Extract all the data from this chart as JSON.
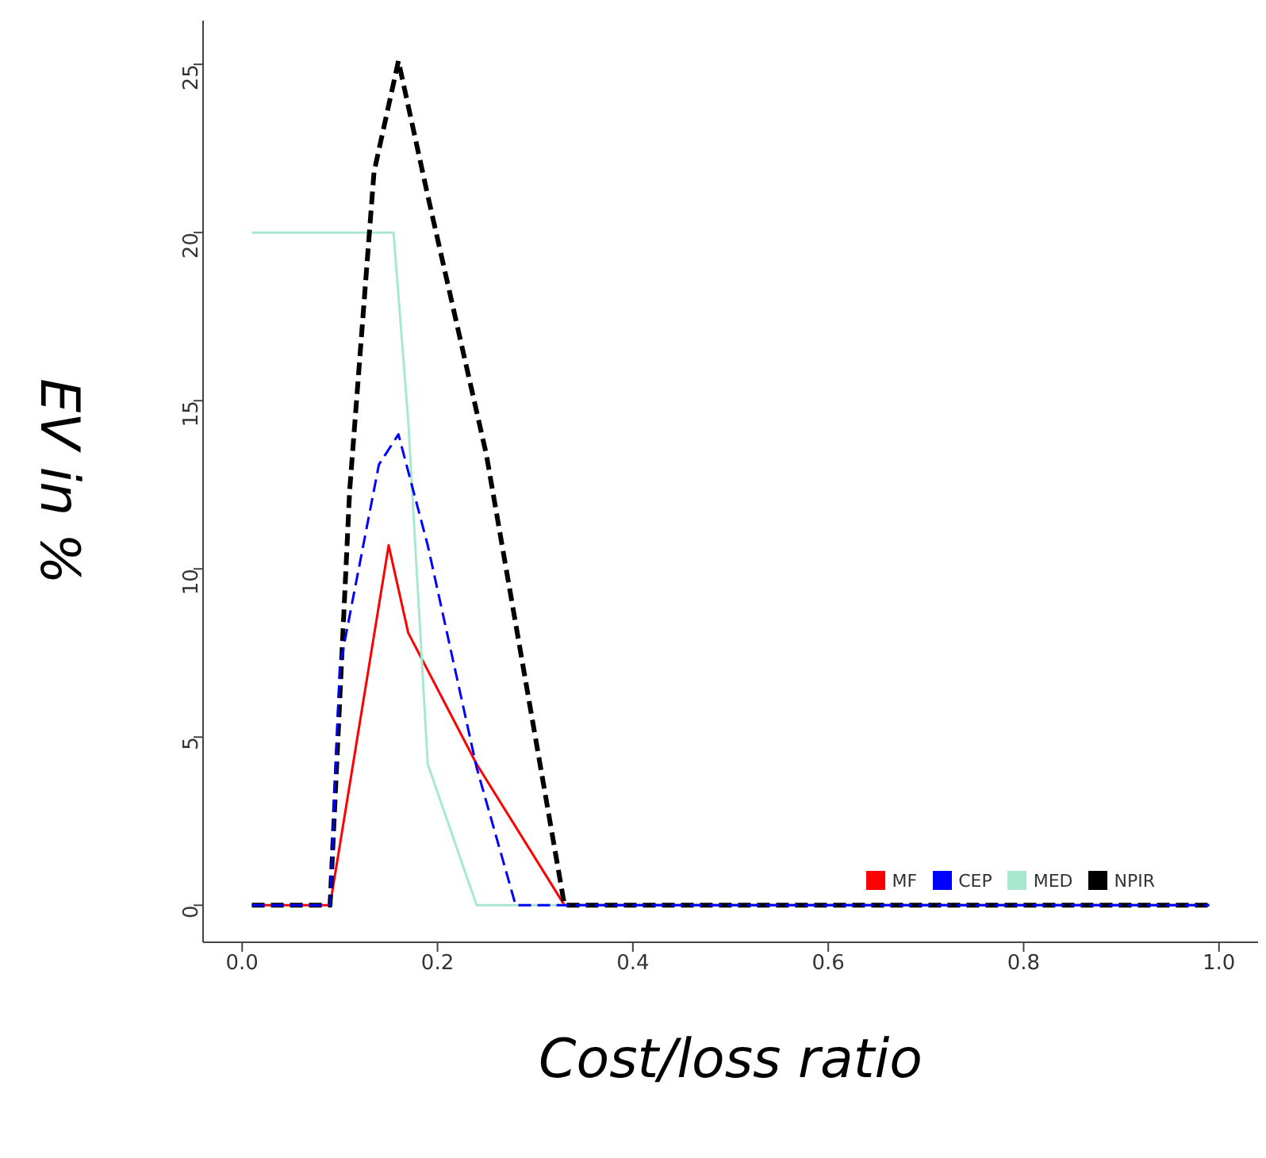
{
  "chart_data": {
    "type": "line",
    "xlabel": "Cost/loss ratio",
    "ylabel": "EV in %",
    "xlim": [
      -0.04,
      1.04
    ],
    "ylim": [
      -1.1,
      26.3
    ],
    "xticks": [
      {
        "value": 0,
        "label": "0.0"
      },
      0.2,
      0.4,
      0.6,
      0.8,
      {
        "value": 1,
        "label": "1.0"
      }
    ],
    "yticks": [
      0,
      5,
      10,
      15,
      20,
      25
    ],
    "grid": false,
    "legend": "bottom right",
    "marker": "none",
    "series": [
      {
        "name": "MF",
        "color": "#ff0000",
        "line_style": "solid",
        "x": [
          0.01,
          0.09,
          0.15,
          0.17,
          0.24,
          0.33,
          0.99
        ],
        "values": [
          0,
          0,
          10.7,
          8.1,
          4.2,
          0,
          0
        ]
      },
      {
        "name": "CEP",
        "color": "#0000ff",
        "line_style": "dashed",
        "x": [
          0.01,
          0.09,
          0.1,
          0.14,
          0.16,
          0.19,
          0.24,
          0.28,
          0.99
        ],
        "values": [
          0,
          0,
          7.1,
          13.1,
          14,
          10.7,
          4.1,
          0,
          0
        ]
      },
      {
        "name": "MED",
        "color": "#a8e8d0",
        "line_style": "solid",
        "x": [
          0.01,
          0.155,
          0.17,
          0.19,
          0.24,
          0.99
        ],
        "values": [
          20,
          20,
          14.4,
          4.2,
          0,
          0
        ]
      },
      {
        "name": "NPIR",
        "color": "#000000",
        "line_style": "dashed",
        "x": [
          0.01,
          0.09,
          0.11,
          0.135,
          0.16,
          0.19,
          0.25,
          0.33,
          0.99
        ],
        "values": [
          0,
          0,
          12.3,
          21.8,
          25.1,
          21.1,
          13.4,
          0,
          0
        ]
      }
    ]
  }
}
